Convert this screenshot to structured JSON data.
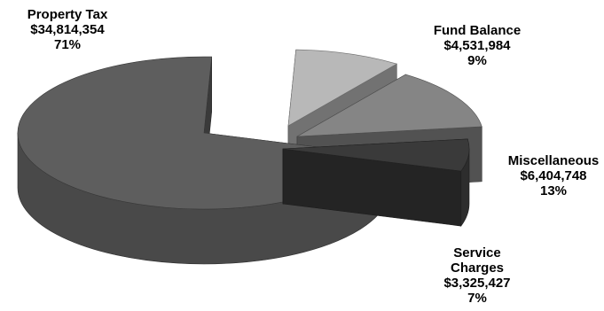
{
  "chart_data": {
    "type": "pie",
    "three_d": true,
    "exploded": true,
    "slices": [
      {
        "name": "Property Tax",
        "value_label": "$34,814,354",
        "value": 34814354,
        "percent_label": "71%",
        "percent": 71,
        "color": "#5e5e5e"
      },
      {
        "name": "Fund Balance",
        "value_label": "$4,531,984",
        "value": 4531984,
        "percent_label": "9%",
        "percent": 9,
        "color": "#b8b8b8"
      },
      {
        "name": "Miscellaneous",
        "value_label": "$6,404,748",
        "value": 6404748,
        "percent_label": "13%",
        "percent": 13,
        "color": "#858585"
      },
      {
        "name": "Service Charges",
        "name_lines": [
          "Service",
          "Charges"
        ],
        "value_label": "$3,325,427",
        "value": 3325427,
        "percent_label": "7%",
        "percent": 7,
        "color": "#3a3a3a"
      }
    ]
  }
}
